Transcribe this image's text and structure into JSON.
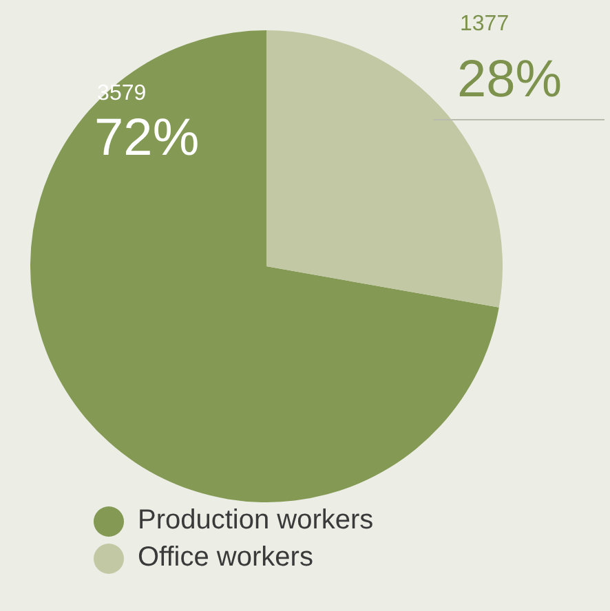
{
  "chart_data": {
    "type": "pie",
    "categories": [
      "Production workers",
      "Office workers"
    ],
    "values": [
      3579,
      1377
    ],
    "colors": [
      "#849a54",
      "#c2c8a4"
    ],
    "value_labels": [
      "3579\n72%",
      "1377\n28%"
    ],
    "legend": "bottom"
  }
}
